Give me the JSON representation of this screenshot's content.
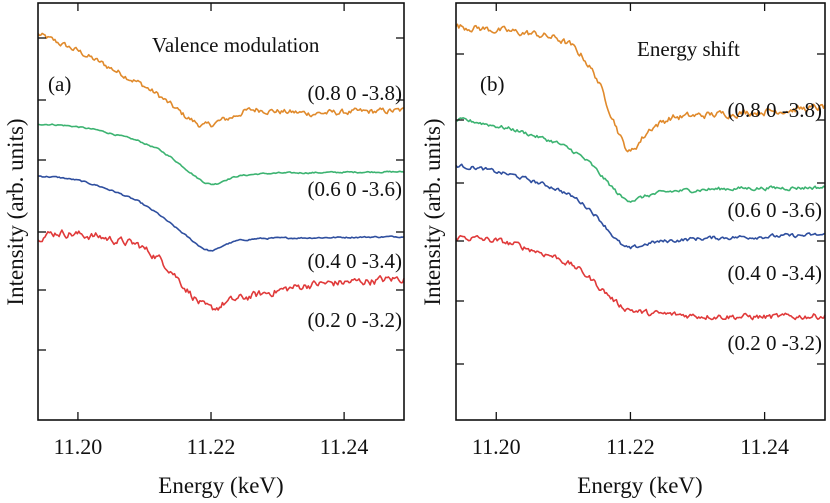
{
  "chart_data": [
    {
      "type": "line",
      "panel_label": "(a)",
      "title": "Valence modulation",
      "xlabel": "Energy (keV)",
      "ylabel": "Intensity (arb. units)",
      "xlim": [
        11.194,
        11.249
      ],
      "ylim": [
        0,
        1
      ],
      "x_ticks": [
        "11.20",
        "11.22",
        "11.24"
      ],
      "x_tick_values": [
        11.2,
        11.22,
        11.24
      ],
      "y_ticks_labeled": false,
      "grid": false,
      "series": [
        {
          "name": "(0.8 0 -3.8)",
          "color": "#e08a2c",
          "noise": 0.006,
          "x": [
            11.194,
            11.197,
            11.2,
            11.203,
            11.206,
            11.209,
            11.212,
            11.214,
            11.216,
            11.218,
            11.219,
            11.22,
            11.221,
            11.223,
            11.225,
            11.227,
            11.23,
            11.235,
            11.24,
            11.245,
            11.249
          ],
          "y": [
            0.925,
            0.905,
            0.885,
            0.86,
            0.835,
            0.81,
            0.78,
            0.755,
            0.73,
            0.71,
            0.705,
            0.708,
            0.715,
            0.725,
            0.74,
            0.745,
            0.74,
            0.735,
            0.738,
            0.74,
            0.742
          ]
        },
        {
          "name": "(0.6 0 -3.6)",
          "color": "#3cb371",
          "noise": 0.0015,
          "x": [
            11.194,
            11.197,
            11.2,
            11.203,
            11.206,
            11.209,
            11.212,
            11.214,
            11.216,
            11.218,
            11.219,
            11.22,
            11.221,
            11.222,
            11.224,
            11.227,
            11.23,
            11.235,
            11.24,
            11.245,
            11.249
          ],
          "y": [
            0.71,
            0.708,
            0.703,
            0.695,
            0.683,
            0.67,
            0.65,
            0.63,
            0.605,
            0.58,
            0.57,
            0.565,
            0.567,
            0.575,
            0.585,
            0.59,
            0.592,
            0.593,
            0.594,
            0.595,
            0.595
          ]
        },
        {
          "name": "(0.4 0 -3.4)",
          "color": "#2f4f9f",
          "noise": 0.0015,
          "x": [
            11.194,
            11.197,
            11.2,
            11.203,
            11.206,
            11.209,
            11.212,
            11.214,
            11.216,
            11.218,
            11.219,
            11.22,
            11.221,
            11.222,
            11.224,
            11.227,
            11.23,
            11.235,
            11.24,
            11.245,
            11.249
          ],
          "y": [
            0.585,
            0.582,
            0.575,
            0.562,
            0.545,
            0.525,
            0.495,
            0.47,
            0.445,
            0.42,
            0.41,
            0.405,
            0.41,
            0.42,
            0.43,
            0.435,
            0.436,
            0.437,
            0.438,
            0.439,
            0.44
          ]
        },
        {
          "name": "(0.2 0 -3.2)",
          "color": "#e03a3a",
          "noise": 0.008,
          "x": [
            11.194,
            11.197,
            11.2,
            11.203,
            11.206,
            11.209,
            11.212,
            11.214,
            11.216,
            11.218,
            11.219,
            11.22,
            11.221,
            11.222,
            11.224,
            11.227,
            11.23,
            11.235,
            11.24,
            11.245,
            11.249
          ],
          "y": [
            0.44,
            0.45,
            0.445,
            0.44,
            0.43,
            0.42,
            0.39,
            0.36,
            0.32,
            0.285,
            0.27,
            0.265,
            0.27,
            0.28,
            0.29,
            0.3,
            0.31,
            0.325,
            0.33,
            0.335,
            0.34
          ]
        }
      ]
    },
    {
      "type": "line",
      "panel_label": "(b)",
      "title": "Energy shift",
      "xlabel": "Energy (keV)",
      "ylabel": "Intensity (arb. units)",
      "xlim": [
        11.194,
        11.249
      ],
      "ylim": [
        0,
        1
      ],
      "x_ticks": [
        "11.20",
        "11.22",
        "11.24"
      ],
      "x_tick_values": [
        11.2,
        11.22,
        11.24
      ],
      "y_ticks_labeled": false,
      "grid": false,
      "series": [
        {
          "name": "(0.8 0 -3.8)",
          "color": "#e08a2c",
          "noise": 0.007,
          "x": [
            11.194,
            11.197,
            11.2,
            11.203,
            11.206,
            11.209,
            11.211,
            11.213,
            11.215,
            11.217,
            11.219,
            11.22,
            11.221,
            11.223,
            11.226,
            11.23,
            11.235,
            11.24,
            11.245,
            11.249
          ],
          "y": [
            0.945,
            0.94,
            0.935,
            0.93,
            0.925,
            0.915,
            0.9,
            0.87,
            0.82,
            0.74,
            0.66,
            0.64,
            0.66,
            0.7,
            0.725,
            0.73,
            0.735,
            0.74,
            0.745,
            0.75
          ]
        },
        {
          "name": "(0.6 0 -3.6)",
          "color": "#3cb371",
          "noise": 0.004,
          "x": [
            11.194,
            11.197,
            11.2,
            11.203,
            11.206,
            11.209,
            11.212,
            11.214,
            11.216,
            11.218,
            11.219,
            11.22,
            11.221,
            11.223,
            11.226,
            11.23,
            11.235,
            11.24,
            11.245,
            11.249
          ],
          "y": [
            0.72,
            0.715,
            0.705,
            0.695,
            0.68,
            0.665,
            0.64,
            0.615,
            0.58,
            0.545,
            0.53,
            0.528,
            0.53,
            0.54,
            0.548,
            0.552,
            0.555,
            0.556,
            0.557,
            0.558
          ]
        },
        {
          "name": "(0.4 0 -3.4)",
          "color": "#2f4f9f",
          "noise": 0.004,
          "x": [
            11.194,
            11.197,
            11.2,
            11.203,
            11.206,
            11.209,
            11.212,
            11.214,
            11.216,
            11.218,
            11.219,
            11.22,
            11.221,
            11.223,
            11.226,
            11.23,
            11.235,
            11.24,
            11.245,
            11.249
          ],
          "y": [
            0.61,
            0.605,
            0.595,
            0.585,
            0.57,
            0.555,
            0.53,
            0.505,
            0.47,
            0.43,
            0.415,
            0.41,
            0.415,
            0.425,
            0.43,
            0.435,
            0.438,
            0.44,
            0.442,
            0.444
          ]
        },
        {
          "name": "(0.2 0 -3.2)",
          "color": "#e03a3a",
          "noise": 0.006,
          "x": [
            11.194,
            11.197,
            11.2,
            11.203,
            11.206,
            11.209,
            11.212,
            11.214,
            11.216,
            11.218,
            11.219,
            11.22,
            11.221,
            11.223,
            11.226,
            11.23,
            11.235,
            11.24,
            11.245,
            11.249
          ],
          "y": [
            0.44,
            0.435,
            0.43,
            0.42,
            0.405,
            0.39,
            0.365,
            0.34,
            0.31,
            0.28,
            0.27,
            0.265,
            0.26,
            0.255,
            0.253,
            0.25,
            0.248,
            0.247,
            0.248,
            0.25
          ]
        }
      ]
    }
  ]
}
